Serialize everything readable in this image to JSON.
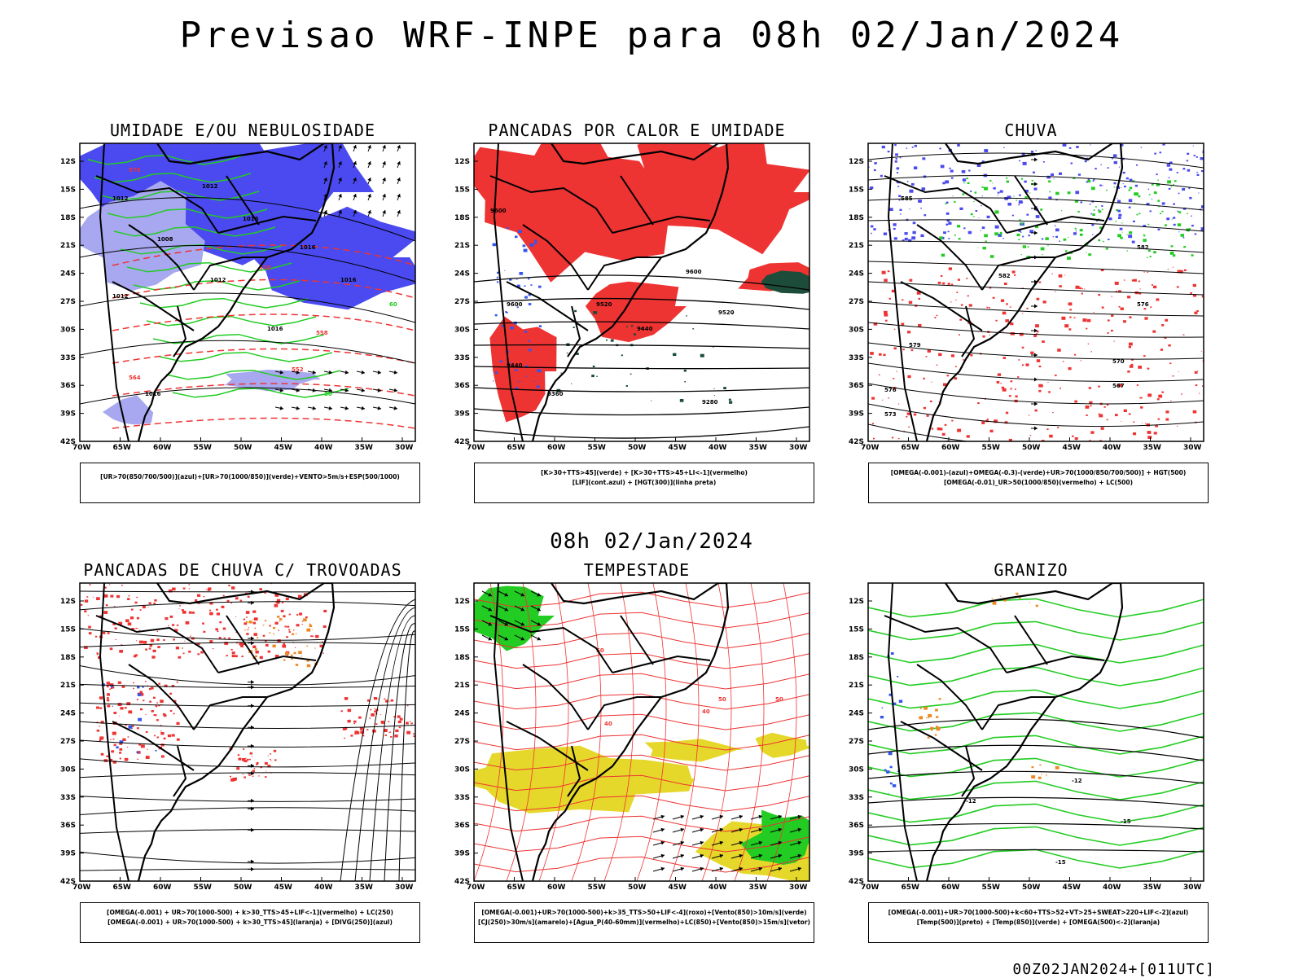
{
  "header": {
    "title": "Previsao WRF-INPE  para 08h 02/Jan/2024"
  },
  "mid_title": "08h 02/Jan/2024",
  "footer": "00Z02JAN2024+[011UTC]",
  "axes": {
    "lat_labels": [
      "12S",
      "15S",
      "18S",
      "21S",
      "24S",
      "27S",
      "30S",
      "33S",
      "36S",
      "39S",
      "42S"
    ],
    "lon_labels": [
      "70W",
      "65W",
      "60W",
      "55W",
      "50W",
      "45W",
      "40W",
      "35W",
      "30W"
    ]
  },
  "colors": {
    "blue": "#4a4af0",
    "light_blue": "#a8a8f0",
    "green": "#22cc22",
    "red": "#ee3333",
    "dark_green": "#1d4d3a",
    "yellow": "#e6d82a",
    "orange": "#ee8822"
  },
  "panels": [
    {
      "title": "UMIDADE E/OU NEBULOSIDADE",
      "legend": [
        "[UR>70(850/700/500)](azul)+[UR>70(1000/850)](verde)+VENTO>5m/s+ESP(500/1000)"
      ],
      "contour_labels": [
        "1012",
        "1012",
        "1016",
        "1008",
        "1012",
        "1012",
        "1016",
        "1016",
        "1016",
        "1016",
        "576",
        "570",
        "564",
        "558",
        "552",
        "60",
        "80"
      ]
    },
    {
      "title": "PANCADAS POR CALOR E UMIDADE",
      "legend": [
        "[K>30+TTS>45](verde) + [K>30+TTS>45+LI<-1](vermelho)",
        "[LIF](cont.azul) + [HGT(300)](linha preta)"
      ],
      "contour_labels": [
        "9600",
        "9600",
        "9520",
        "9520",
        "9440",
        "9440",
        "9360",
        "9280",
        "9600"
      ]
    },
    {
      "title": "CHUVA",
      "legend": [
        "[OMEGA(-0.001)-(azul)+OMEGA(-0.3)-(verde)+UR>70(1000/850/700/500)] + HGT(500)",
        "[OMEGA(-0.01)_UR>50(1000/850)(vermelho) + LC(500)"
      ],
      "contour_labels": [
        "585",
        "582",
        "579",
        "576",
        "573",
        "570",
        "567",
        "582",
        "576"
      ]
    },
    {
      "title": "PANCADAS DE CHUVA C/ TROVOADAS",
      "legend": [
        "[OMEGA(-0.001) + UR>70(1000-500) + k>30_TTS>45+LIF<-1](vermelho) + LC(250)",
        "[OMEGA(-0.001) + UR>70(1000-500) + k>30_TTS>45](laranja) + [DIVG(250)](azul)"
      ],
      "contour_labels": []
    },
    {
      "title": "TEMPESTADE",
      "legend": [
        "[OMEGA(-0.001)+UR>70(1000-500)+k>35_TTS>50+LIF<-4](roxo)+[Vento(850)>10m/s](verde)",
        "[CJ(250)>30m/s](amarelo)+[Agua_P(40-60mm)](vermelho)+LC(850)+[Vento(850)>15m/s](vetor)"
      ],
      "contour_labels": [
        "50",
        "40",
        "50",
        "40",
        "50"
      ]
    },
    {
      "title": "GRANIZO",
      "legend": [
        "[OMEGA(-0.001)+UR>70(1000-500)+k<60+TTS>52+VT>25+SWEAT>220+LIF<-2](azul)",
        "[Temp(500)](preto) + [Temp(850)](verde) + [OMEGA(500)<-2](laranja)"
      ],
      "contour_labels": [
        "-12",
        "-12",
        "-15",
        "-15"
      ]
    }
  ]
}
